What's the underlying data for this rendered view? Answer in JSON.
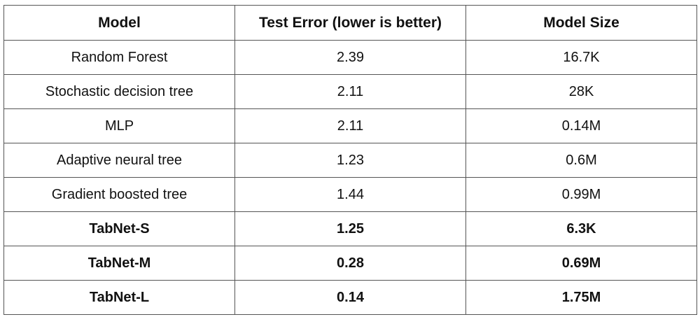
{
  "chart_data": {
    "type": "table",
    "columns": [
      "Model",
      "Test Error (lower is better)",
      "Model Size"
    ],
    "rows": [
      {
        "model": "Random Forest",
        "test_error": "2.39",
        "model_size": "16.7K",
        "bold": false
      },
      {
        "model": "Stochastic decision tree",
        "test_error": "2.11",
        "model_size": "28K",
        "bold": false
      },
      {
        "model": "MLP",
        "test_error": "2.11",
        "model_size": "0.14M",
        "bold": false
      },
      {
        "model": "Adaptive neural tree",
        "test_error": "1.23",
        "model_size": "0.6M",
        "bold": false
      },
      {
        "model": "Gradient boosted tree",
        "test_error": "1.44",
        "model_size": "0.99M",
        "bold": false
      },
      {
        "model": "TabNet-S",
        "test_error": "1.25",
        "model_size": "6.3K",
        "bold": true
      },
      {
        "model": "TabNet-M",
        "test_error": "0.28",
        "model_size": "0.69M",
        "bold": true
      },
      {
        "model": "TabNet-L",
        "test_error": "0.14",
        "model_size": "1.75M",
        "bold": true
      }
    ]
  }
}
